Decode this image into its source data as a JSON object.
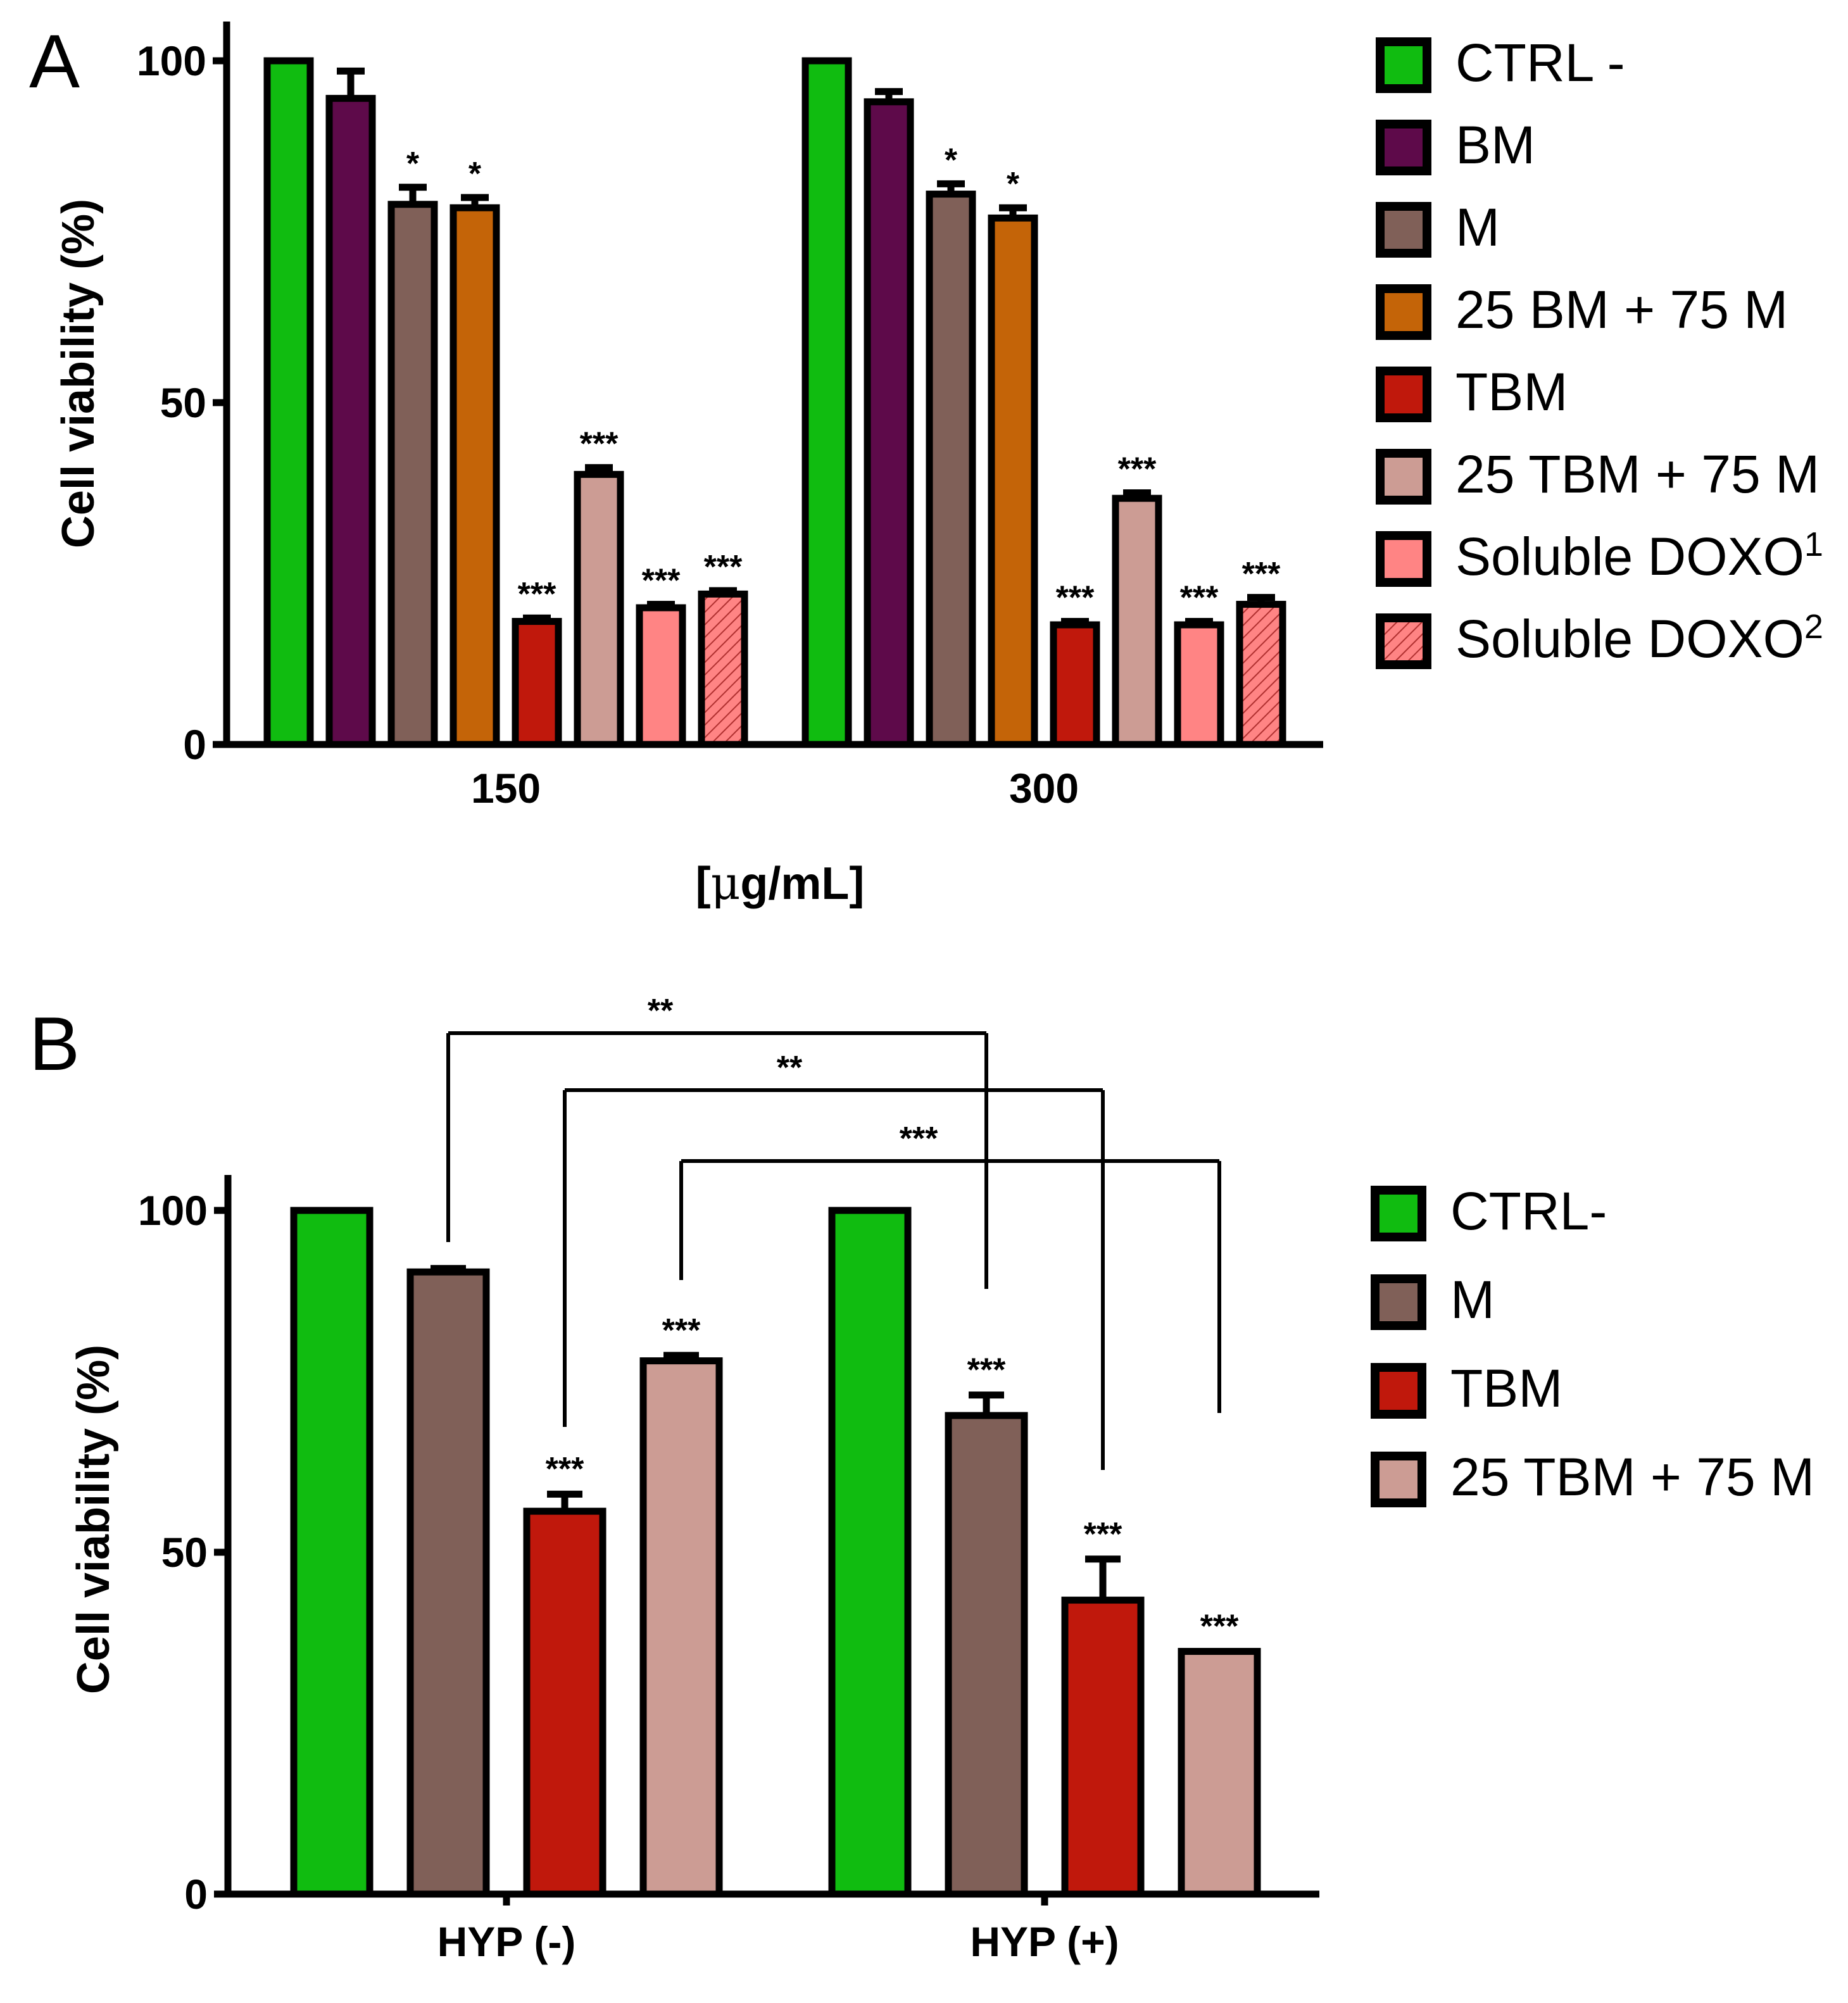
{
  "chart_data": [
    {
      "panel": "A",
      "type": "bar",
      "ylabel": "Cell viability (%)",
      "xlabel_prefix": "[",
      "xlabel_mu": "μ",
      "xlabel_suffix": "g/mL]",
      "ylim": [
        0,
        100
      ],
      "yticks": [
        "0",
        "50",
        "100"
      ],
      "categories": [
        "150",
        "300"
      ],
      "series": [
        {
          "name": "CTRL -",
          "legend_sup": "",
          "color": "#10bc10",
          "hatch": false,
          "values": [
            100,
            100
          ],
          "errors": [
            0,
            0
          ],
          "sig": [
            "",
            ""
          ]
        },
        {
          "name": "BM",
          "legend_sup": "",
          "color": "#5e0a4a",
          "hatch": false,
          "values": [
            94.5,
            94
          ],
          "errors": [
            4,
            1.5
          ],
          "sig": [
            "",
            ""
          ]
        },
        {
          "name": "M",
          "legend_sup": "",
          "color": "#806058",
          "hatch": false,
          "values": [
            79,
            80.5
          ],
          "errors": [
            2.5,
            1.5
          ],
          "sig": [
            "*",
            "*"
          ]
        },
        {
          "name": "25 BM + 75 M",
          "legend_sup": "",
          "color": "#c46408",
          "hatch": false,
          "values": [
            78.5,
            77
          ],
          "errors": [
            1.5,
            1.5
          ],
          "sig": [
            "*",
            "*"
          ]
        },
        {
          "name": "TBM",
          "legend_sup": "",
          "color": "#c0180c",
          "hatch": false,
          "values": [
            18,
            17.5
          ],
          "errors": [
            0.5,
            0.5
          ],
          "sig": [
            "***",
            "***"
          ]
        },
        {
          "name": "25 TBM + 75 M",
          "legend_sup": "",
          "color": "#cc9c94",
          "hatch": false,
          "values": [
            39.5,
            36
          ],
          "errors": [
            1,
            0.8
          ],
          "sig": [
            "***",
            "***"
          ]
        },
        {
          "name": "Soluble DOXO",
          "legend_sup": "1",
          "color": "#ff8484",
          "hatch": false,
          "values": [
            20,
            17.5
          ],
          "errors": [
            0.5,
            0.5
          ],
          "sig": [
            "***",
            "***"
          ]
        },
        {
          "name": "Soluble DOXO",
          "legend_sup": "2",
          "color": "#ff8484",
          "hatch": true,
          "values": [
            22,
            20.5
          ],
          "errors": [
            0.5,
            1
          ],
          "sig": [
            "***",
            "***"
          ]
        }
      ]
    },
    {
      "panel": "B",
      "type": "bar",
      "ylabel": "Cell viability (%)",
      "ylim": [
        0,
        100
      ],
      "yticks": [
        "0",
        "50",
        "100"
      ],
      "categories": [
        "HYP (-)",
        "HYP (+)"
      ],
      "series": [
        {
          "name": "CTRL-",
          "color": "#10bc10",
          "values": [
            100,
            100
          ],
          "errors": [
            0,
            0
          ],
          "sig": [
            "",
            ""
          ]
        },
        {
          "name": "M",
          "color": "#806058",
          "values": [
            91,
            70
          ],
          "errors": [
            0.5,
            3
          ],
          "sig": [
            "",
            "***"
          ]
        },
        {
          "name": "TBM",
          "color": "#c0180c",
          "values": [
            56,
            43
          ],
          "errors": [
            2.5,
            6
          ],
          "sig": [
            "***",
            "***"
          ]
        },
        {
          "name": "25 TBM + 75 M",
          "color": "#cc9c94",
          "values": [
            78,
            35.5
          ],
          "errors": [
            0.8,
            0
          ],
          "sig": [
            "***",
            "***"
          ]
        }
      ],
      "comparisons": [
        {
          "label": "**",
          "from_series": 1,
          "to_series": 1
        },
        {
          "label": "**",
          "from_series": 2,
          "to_series": 2
        },
        {
          "label": "***",
          "from_series": 3,
          "to_series": 3
        }
      ]
    }
  ]
}
